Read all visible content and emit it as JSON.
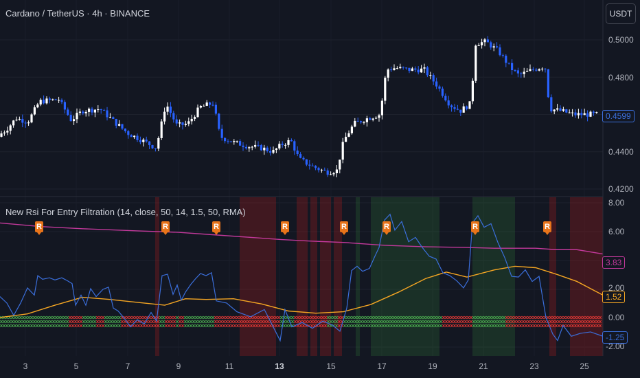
{
  "symbol_title": "Cardano / TetherUS · 4h · BINANCE",
  "currency_button": "USDT",
  "indicator_title": "New Rsi For Entry Filtration (14, close, 50, 14, 1.5, 50, RMA)",
  "price_axis": [
    "0.5000",
    "0.4800",
    "0.4600",
    "0.4400",
    "0.4200"
  ],
  "last_price": "0.4599",
  "indicator_axis": [
    "8.00",
    "6.00",
    "4.00",
    "2.00",
    "0.00",
    "-2.00"
  ],
  "indicator_values": {
    "magenta": "3.83",
    "orange": "1.52",
    "blue": "-1.25"
  },
  "x_axis": [
    {
      "label": "3",
      "bold": false
    },
    {
      "label": "5",
      "bold": false
    },
    {
      "label": "7",
      "bold": false
    },
    {
      "label": "9",
      "bold": false
    },
    {
      "label": "11",
      "bold": false
    },
    {
      "label": "13",
      "bold": true
    },
    {
      "label": "15",
      "bold": false
    },
    {
      "label": "17",
      "bold": false
    },
    {
      "label": "19",
      "bold": false
    },
    {
      "label": "21",
      "bold": false
    },
    {
      "label": "23",
      "bold": false
    },
    {
      "label": "25",
      "bold": false
    }
  ],
  "r_marker_text": "R",
  "colors": {
    "background": "#131722",
    "bull": "#ffffff",
    "bear": "#2962ff",
    "rsi_line": "#3b6fdc",
    "avg_line": "#f5a623",
    "upper_line": "#c2399b",
    "marker": "#e8741a",
    "cross_green": "#4caf50",
    "cross_red": "#e53935"
  }
}
